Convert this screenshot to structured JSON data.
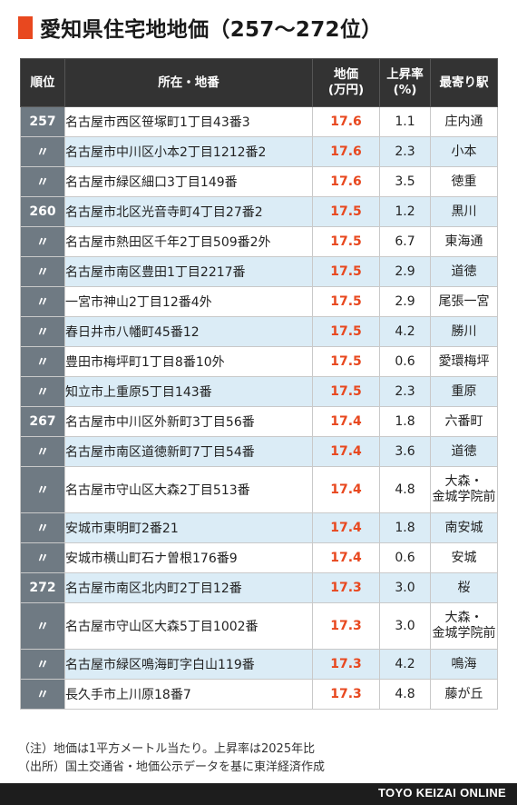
{
  "title": "愛知県住宅地地価（257〜272位）",
  "headers": {
    "rank": "順位",
    "location": "所在・地番",
    "price": "地価\n(万円)",
    "rate": "上昇率\n(%)",
    "station": "最寄り駅"
  },
  "rows": [
    {
      "rank": "257",
      "location": "名古屋市西区笹塚町1丁目43番3",
      "price": "17.6",
      "rate": "1.1",
      "station": "庄内通"
    },
    {
      "rank": "〃",
      "location": "名古屋市中川区小本2丁目1212番2",
      "price": "17.6",
      "rate": "2.3",
      "station": "小本"
    },
    {
      "rank": "〃",
      "location": "名古屋市緑区細口3丁目149番",
      "price": "17.6",
      "rate": "3.5",
      "station": "徳重"
    },
    {
      "rank": "260",
      "location": "名古屋市北区光音寺町4丁目27番2",
      "price": "17.5",
      "rate": "1.2",
      "station": "黒川"
    },
    {
      "rank": "〃",
      "location": "名古屋市熱田区千年2丁目509番2外",
      "price": "17.5",
      "rate": "6.7",
      "station": "東海通"
    },
    {
      "rank": "〃",
      "location": "名古屋市南区豊田1丁目2217番",
      "price": "17.5",
      "rate": "2.9",
      "station": "道徳"
    },
    {
      "rank": "〃",
      "location": "一宮市神山2丁目12番4外",
      "price": "17.5",
      "rate": "2.9",
      "station": "尾張一宮"
    },
    {
      "rank": "〃",
      "location": "春日井市八幡町45番12",
      "price": "17.5",
      "rate": "4.2",
      "station": "勝川"
    },
    {
      "rank": "〃",
      "location": "豊田市梅坪町1丁目8番10外",
      "price": "17.5",
      "rate": "0.6",
      "station": "愛環梅坪"
    },
    {
      "rank": "〃",
      "location": "知立市上重原5丁目143番",
      "price": "17.5",
      "rate": "2.3",
      "station": "重原"
    },
    {
      "rank": "267",
      "location": "名古屋市中川区外新町3丁目56番",
      "price": "17.4",
      "rate": "1.8",
      "station": "六番町"
    },
    {
      "rank": "〃",
      "location": "名古屋市南区道徳新町7丁目54番",
      "price": "17.4",
      "rate": "3.6",
      "station": "道徳"
    },
    {
      "rank": "〃",
      "location": "名古屋市守山区大森2丁目513番",
      "price": "17.4",
      "rate": "4.8",
      "station": "大森・\n金城学院前"
    },
    {
      "rank": "〃",
      "location": "安城市東明町2番21",
      "price": "17.4",
      "rate": "1.8",
      "station": "南安城"
    },
    {
      "rank": "〃",
      "location": "安城市横山町石ナ曽根176番9",
      "price": "17.4",
      "rate": "0.6",
      "station": "安城"
    },
    {
      "rank": "272",
      "location": "名古屋市南区北内町2丁目12番",
      "price": "17.3",
      "rate": "3.0",
      "station": "桜"
    },
    {
      "rank": "〃",
      "location": "名古屋市守山区大森5丁目1002番",
      "price": "17.3",
      "rate": "3.0",
      "station": "大森・\n金城学院前"
    },
    {
      "rank": "〃",
      "location": "名古屋市緑区鳴海町字白山119番",
      "price": "17.3",
      "rate": "4.2",
      "station": "鳴海"
    },
    {
      "rank": "〃",
      "location": "長久手市上川原18番7",
      "price": "17.3",
      "rate": "4.8",
      "station": "藤が丘"
    }
  ],
  "notes": [
    "（注）地価は1平方メートル当たり。上昇率は2025年比",
    "（出所）国土交通省・地価公示データを基に東洋経済作成"
  ],
  "footer": "TOYO KEIZAI ONLINE",
  "colors": {
    "accent": "#e8481f",
    "header_bg": "#333333",
    "rank_bg": "#6f7a83",
    "alt_row": "#dbecf6"
  }
}
